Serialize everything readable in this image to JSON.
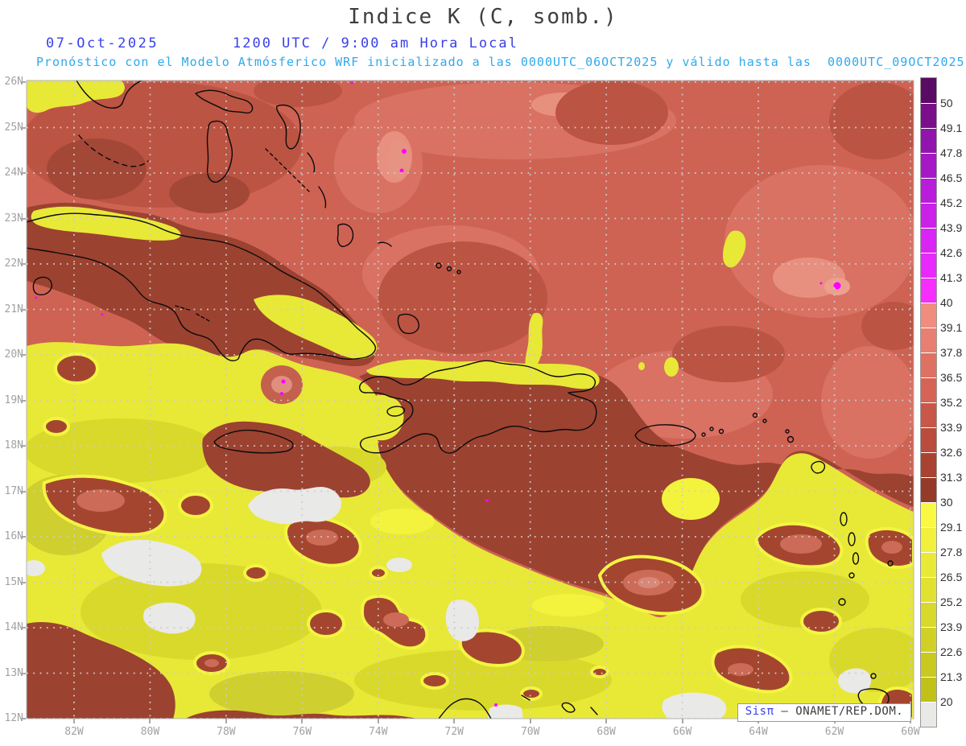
{
  "header": {
    "title": "Indice K (C, somb.)",
    "date": "07-Oct-2025",
    "time": "1200 UTC / 9:00 am Hora Local",
    "subtitle": "Pronóstico con el Modelo Atmósferico WRF inicializado a las 0000UTC_06OCT2025 y válido hasta las  0000UTC_09OCT2025"
  },
  "colors": {
    "title_text": "#3e3e3e",
    "date_blue": "#3a40e8",
    "subtitle_cyan": "#2ea9ee",
    "axis_gray": "#a2a2a2",
    "magenta_spot": "#ff00ff",
    "land_outline": "#0b0b0b",
    "grid_gray": "#cccccc"
  },
  "map": {
    "lat_labels": [
      "26N",
      "25N",
      "24N",
      "23N",
      "22N",
      "21N",
      "20N",
      "19N",
      "18N",
      "17N",
      "16N",
      "15N",
      "14N",
      "13N",
      "12N"
    ],
    "lon_labels": [
      "82W",
      "80W",
      "78W",
      "76W",
      "74W",
      "72W",
      "70W",
      "68W",
      "66W",
      "64W",
      "62W",
      "60W"
    ]
  },
  "colorbar": {
    "tick_labels": [
      "50",
      "49.1",
      "47.8",
      "46.5",
      "45.2",
      "43.9",
      "42.6",
      "41.3",
      "40",
      "39.1",
      "37.8",
      "36.5",
      "35.2",
      "33.9",
      "32.6",
      "31.3",
      "30",
      "29.1",
      "27.8",
      "26.5",
      "25.2",
      "23.9",
      "22.6",
      "21.3",
      "20"
    ],
    "segment_colors": [
      "#5a0b63",
      "#7a0f8a",
      "#9114ac",
      "#a618c6",
      "#b91cdb",
      "#ca20ea",
      "#da24f5",
      "#e928fc",
      "#f72cff",
      "#ef8d7e",
      "#e87f70",
      "#df7162",
      "#d56454",
      "#c85747",
      "#b94c3c",
      "#a84231",
      "#943a28",
      "#f9f943",
      "#f1f13d",
      "#e9e937",
      "#e1e131",
      "#d9d92b",
      "#d1d125",
      "#c9c91f",
      "#c1c119",
      "#e9e9e6"
    ]
  },
  "watermark": {
    "brand": "Sisπ",
    "rest": " – ONAMET/REP.DOM."
  }
}
